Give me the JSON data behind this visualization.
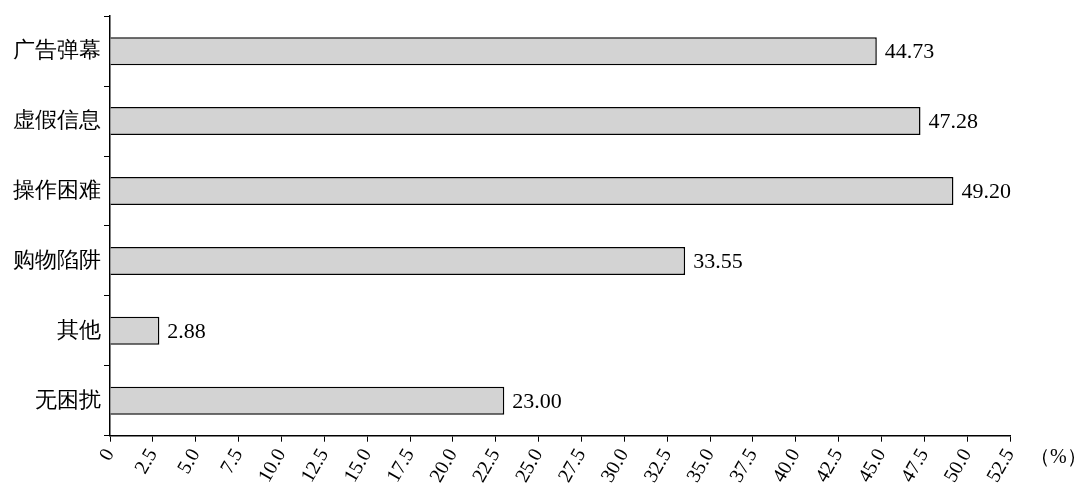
{
  "chart_data": {
    "type": "bar",
    "orientation": "horizontal",
    "xlabel": "（%）",
    "categories": [
      "广告弹幕",
      "虚假信息",
      "操作困难",
      "购物陷阱",
      "其他",
      "无困扰"
    ],
    "values": [
      44.73,
      47.28,
      49.2,
      33.55,
      2.88,
      23.0
    ],
    "value_labels": [
      "44.73",
      "47.28",
      "49.20",
      "33.55",
      "2.88",
      "23.00"
    ],
    "color": "#d3d3d3",
    "xlim": [
      0,
      52.5
    ],
    "xticks": [
      0,
      2.5,
      {
        "value": 5,
        "label": "5.0"
      },
      7.5,
      {
        "value": 10,
        "label": "10.0"
      },
      12.5,
      {
        "value": 15,
        "label": "15.0"
      },
      17.5,
      {
        "value": 20,
        "label": "20.0"
      },
      22.5,
      {
        "value": 25,
        "label": "25.0"
      },
      27.5,
      {
        "value": 30,
        "label": "30.0"
      },
      32.5,
      {
        "value": 35,
        "label": "35.0"
      },
      37.5,
      {
        "value": 40,
        "label": "40.0"
      },
      42.5,
      {
        "value": 45,
        "label": "45.0"
      },
      47.5,
      {
        "value": 50,
        "label": "50.0"
      },
      52.5
    ],
    "grid": false,
    "legend": false
  }
}
